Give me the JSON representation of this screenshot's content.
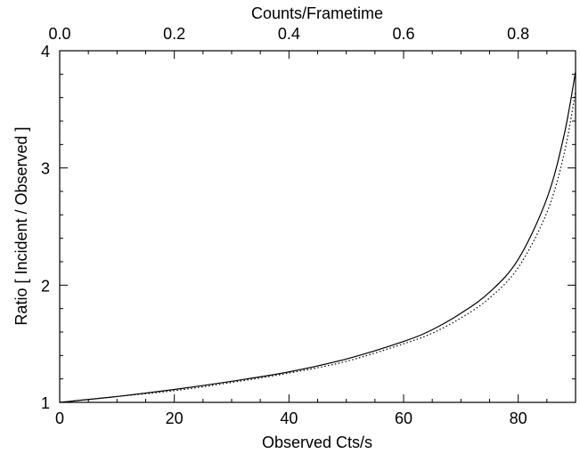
{
  "chart_data": {
    "type": "line",
    "title": "",
    "xlabel": "Observed Cts/s",
    "ylabel": "Ratio [ Incident / Observed ]",
    "x2label": "Counts/Frametime",
    "xlim": [
      0,
      90
    ],
    "ylim": [
      1,
      4
    ],
    "x2lim": [
      0,
      0.9
    ],
    "xticks": [
      "0",
      "20",
      "40",
      "60",
      "80"
    ],
    "yticks": [
      "1",
      "2",
      "3",
      "4"
    ],
    "x2ticks": [
      "0.0",
      "0.2",
      "0.4",
      "0.6",
      "0.8"
    ],
    "grid": false,
    "legend": "none",
    "series": [
      {
        "style": "solid",
        "x": [
          0,
          10,
          20,
          30,
          40,
          50,
          60,
          65,
          70,
          75,
          80,
          85,
          88,
          90
        ],
        "y": [
          1.0,
          1.05,
          1.11,
          1.18,
          1.26,
          1.37,
          1.52,
          1.62,
          1.76,
          1.94,
          2.22,
          2.74,
          3.28,
          3.82
        ]
      },
      {
        "style": "dotted",
        "x": [
          0,
          10,
          20,
          30,
          40,
          50,
          60,
          65,
          70,
          75,
          80,
          85,
          88,
          90
        ],
        "y": [
          1.0,
          1.05,
          1.1,
          1.17,
          1.25,
          1.35,
          1.5,
          1.59,
          1.72,
          1.89,
          2.15,
          2.62,
          3.12,
          3.65
        ]
      }
    ]
  }
}
